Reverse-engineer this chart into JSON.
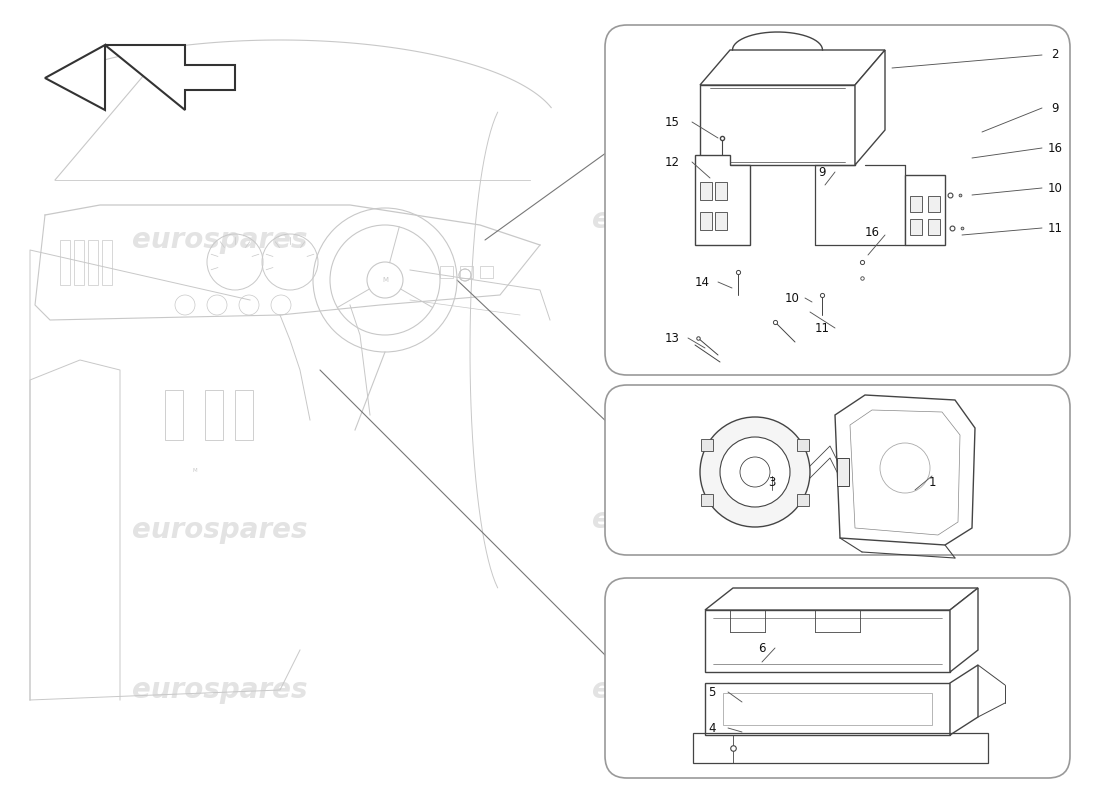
{
  "background_color": "#ffffff",
  "watermark_text": "eurospares",
  "watermark_color": "#cccccc",
  "line_color": "#444444",
  "car_line_color": "#c8c8c8",
  "box_bg": "#ffffff",
  "box_border": "#999999",
  "label_fontsize": 8.5,
  "lw": 1.0,
  "box1_labels": [
    [
      10.55,
      7.45,
      "2"
    ],
    [
      10.55,
      6.92,
      "9"
    ],
    [
      10.55,
      6.52,
      "16"
    ],
    [
      10.55,
      6.12,
      "10"
    ],
    [
      10.55,
      5.72,
      "11"
    ],
    [
      6.72,
      6.78,
      "15"
    ],
    [
      6.72,
      6.38,
      "12"
    ],
    [
      8.22,
      6.28,
      "9"
    ],
    [
      8.72,
      5.68,
      "16"
    ],
    [
      7.02,
      5.18,
      "14"
    ],
    [
      7.92,
      5.02,
      "10"
    ],
    [
      6.72,
      4.62,
      "13"
    ],
    [
      8.22,
      4.72,
      "11"
    ]
  ],
  "box2_labels": [
    [
      7.72,
      3.18,
      "3"
    ],
    [
      9.32,
      3.18,
      "1"
    ]
  ],
  "box3_labels": [
    [
      7.62,
      1.52,
      "6"
    ],
    [
      7.12,
      1.08,
      "5"
    ],
    [
      7.12,
      0.72,
      "4"
    ]
  ]
}
